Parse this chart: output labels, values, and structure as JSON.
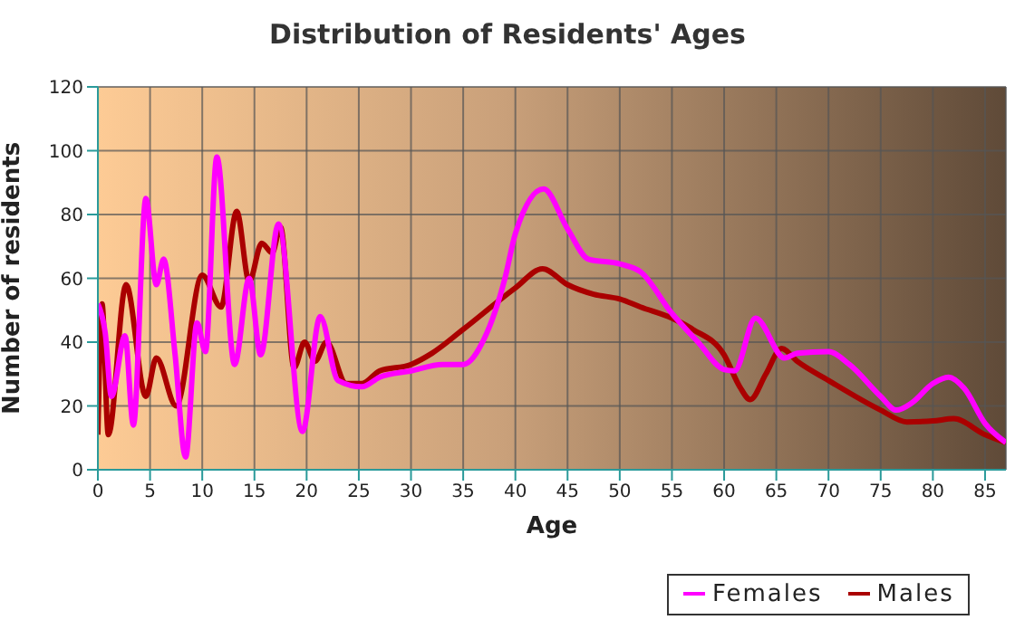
{
  "chart_data": {
    "type": "line",
    "title": "Distribution of Residents' Ages",
    "xlabel": "Age",
    "ylabel": "Number of residents",
    "xlim": [
      0,
      87
    ],
    "xticks": [
      0,
      5,
      10,
      15,
      20,
      25,
      30,
      35,
      40,
      45,
      50,
      55,
      60,
      65,
      70,
      75,
      80,
      85
    ],
    "ylim": [
      0,
      120
    ],
    "yticks": [
      0,
      20,
      40,
      60,
      80,
      100,
      120
    ],
    "grid": true,
    "legend": "bottom right",
    "marker": "none",
    "line_style": "solid",
    "series": [
      {
        "name": "Males",
        "color": "#aa0000",
        "x": [
          0,
          0.4,
          1,
          2.7,
          4.6,
          5.6,
          7.5,
          10,
          11.8,
          13.3,
          14.5,
          15.7,
          16.7,
          17.5,
          18.8,
          19.8,
          20.8,
          21.9,
          23.8,
          25.3,
          27,
          30,
          32,
          35,
          40,
          42.6,
          45,
          47.5,
          50,
          52,
          55,
          57,
          60,
          61.5,
          62.5,
          64,
          65.5,
          67,
          70,
          75,
          77.5,
          80,
          82,
          85,
          87
        ],
        "values": [
          11,
          52,
          11,
          58,
          23,
          35,
          20,
          61,
          51,
          81,
          59,
          71,
          68,
          76,
          32,
          40,
          34,
          40,
          27,
          27,
          31,
          33,
          36.5,
          44,
          57,
          63,
          58,
          55,
          53.5,
          51,
          47.5,
          44,
          36,
          26,
          22,
          30,
          38,
          34,
          28,
          18.7,
          15,
          15.3,
          16,
          11,
          8.5
        ]
      },
      {
        "name": "Females",
        "color": "#ff00ff",
        "x": [
          0,
          0.7,
          1.3,
          2.6,
          3.4,
          4.6,
          5.6,
          6.3,
          7.4,
          8.4,
          9.5,
          10.3,
          11.4,
          13.1,
          14.5,
          15.6,
          17.3,
          19.6,
          21.3,
          23,
          25.3,
          27,
          30,
          33,
          35,
          37,
          39,
          40,
          42.7,
          45,
          47,
          50,
          52,
          55,
          57.5,
          60,
          61,
          63,
          65.8,
          67,
          70,
          72,
          75,
          76.5,
          78,
          80,
          81.5,
          83,
          85,
          87
        ],
        "values": [
          52,
          43,
          23,
          42,
          14,
          85,
          58,
          66,
          36,
          4,
          46,
          37,
          98,
          33,
          60,
          36,
          77,
          12,
          48,
          28,
          26,
          29,
          31,
          33,
          33,
          41,
          60,
          74,
          88,
          75.5,
          66,
          64.5,
          62,
          49,
          40,
          31.4,
          31,
          47.5,
          35,
          36.5,
          37,
          33,
          23,
          18.7,
          21,
          27,
          29,
          25.5,
          14.5,
          8.5
        ]
      }
    ]
  }
}
